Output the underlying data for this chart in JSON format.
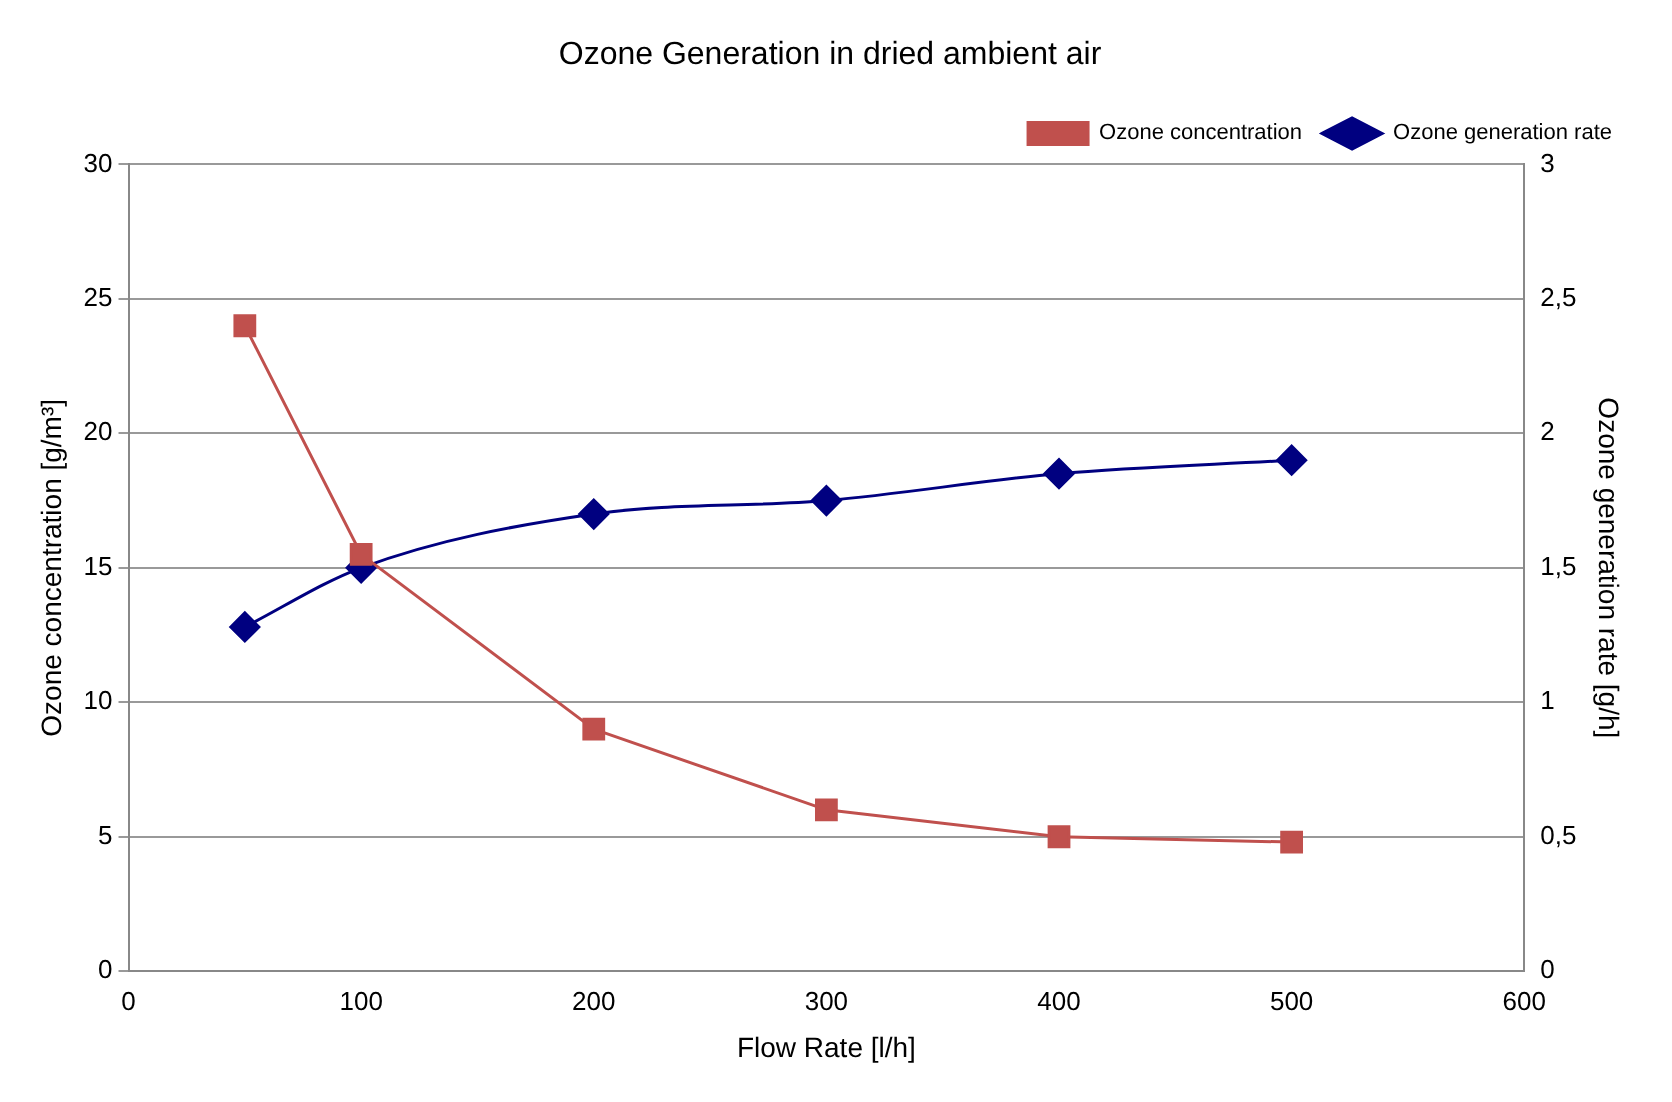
{
  "chart_data": {
    "type": "line",
    "title": "Ozone Generation in dried ambient air",
    "xlabel": "Flow Rate [l/h]",
    "ylabel": "Ozone concentration [g/m³]",
    "y2label": "Ozone generation rate [g/h]",
    "x": [
      50,
      100,
      200,
      300,
      400,
      500
    ],
    "series": [
      {
        "name": "Ozone concentration",
        "color": "#c0504d",
        "marker": "square",
        "values": [
          24,
          15.5,
          9,
          6,
          5,
          4.8
        ]
      },
      {
        "name": "Ozone generation rate",
        "color": "#000080",
        "marker": "diamond",
        "axis": "y2",
        "values": [
          1.28,
          1.5,
          1.7,
          1.75,
          1.85,
          1.9
        ]
      }
    ],
    "xlim": [
      0,
      600
    ],
    "xticks": [
      0,
      100,
      200,
      300,
      400,
      500,
      600
    ],
    "ylim": [
      0,
      30
    ],
    "yticks": [
      0,
      5,
      10,
      15,
      20,
      25,
      30
    ],
    "y2lim": [
      0,
      3
    ],
    "y2ticks": [
      0,
      {
        "value": 0.5,
        "label": "0,5"
      },
      1,
      {
        "value": 1.5,
        "label": "1,5"
      },
      2,
      {
        "value": 2.5,
        "label": "2,5"
      },
      3
    ],
    "grid": "y",
    "legend": "top right",
    "line_style": "solid"
  }
}
